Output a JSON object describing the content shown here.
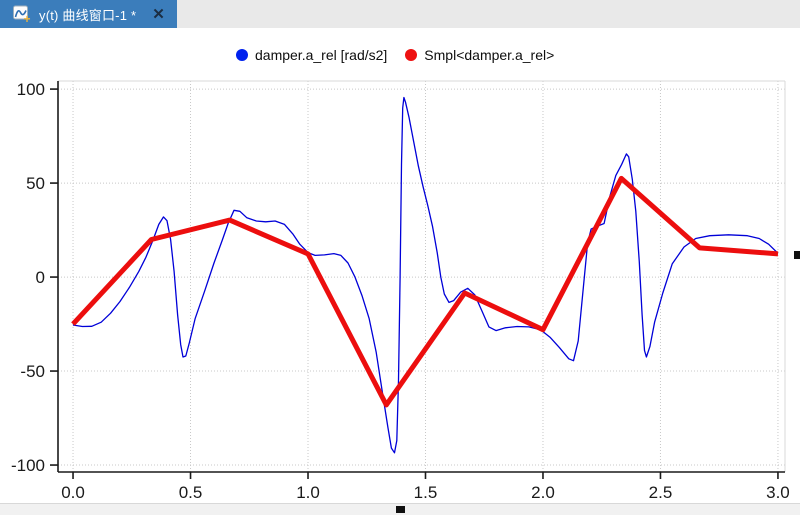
{
  "tab": {
    "title": "y(t) 曲线窗口-1 *",
    "close_glyph": "✕"
  },
  "colors": {
    "tab_active_bg": "#3b7dbb",
    "tab_bar_bg": "#e9e9e9",
    "series_blue": "#0000d8",
    "series_red": "#ec0e0e",
    "grid": "#c8c8c8",
    "axis": "#1a1a1a",
    "plot_border": "#d9d9d9"
  },
  "legend": {
    "entries": [
      {
        "label": "damper.a_rel [rad/s2]",
        "color": "#0022ee"
      },
      {
        "label": "Smpl<damper.a_rel>",
        "color": "#ee1111"
      }
    ]
  },
  "chart_data": {
    "type": "line",
    "title": "",
    "xlabel": "",
    "ylabel": "",
    "grid": "dotted",
    "legend_position": "top-center",
    "xlim": [
      -0.064,
      3.03
    ],
    "ylim": [
      -103.7,
      104.3
    ],
    "x_ticks": [
      0.0,
      0.5,
      1.0,
      1.5,
      2.0,
      2.5,
      3.0
    ],
    "x_tick_labels": [
      "0.0",
      "0.5",
      "1.0",
      "1.5",
      "2.0",
      "2.5",
      "3.0"
    ],
    "y_ticks": [
      100,
      50,
      0,
      -50,
      -100
    ],
    "y_tick_labels": [
      "100",
      "50",
      "0",
      "-50",
      "-100"
    ],
    "series": [
      {
        "name": "damper.a_rel [rad/s2]",
        "color": "#0000d8",
        "width": 1.3,
        "x": [
          0,
          0.04,
          0.08,
          0.12,
          0.16,
          0.2,
          0.24,
          0.28,
          0.31,
          0.34,
          0.365,
          0.385,
          0.4,
          0.415,
          0.43,
          0.445,
          0.458,
          0.468,
          0.48,
          0.495,
          0.52,
          0.56,
          0.6,
          0.635,
          0.66,
          0.685,
          0.71,
          0.74,
          0.78,
          0.82,
          0.86,
          0.9,
          0.935,
          0.965,
          1.0,
          1.03,
          1.07,
          1.11,
          1.14,
          1.17,
          1.2,
          1.23,
          1.26,
          1.29,
          1.315,
          1.34,
          1.355,
          1.368,
          1.378,
          1.385,
          1.392,
          1.398,
          1.403,
          1.408,
          1.415,
          1.43,
          1.45,
          1.47,
          1.49,
          1.51,
          1.53,
          1.55,
          1.565,
          1.58,
          1.6,
          1.62,
          1.65,
          1.68,
          1.71,
          1.74,
          1.77,
          1.8,
          1.84,
          1.89,
          1.94,
          1.99,
          2.03,
          2.07,
          2.11,
          2.13,
          2.15,
          2.17,
          2.19,
          2.205,
          2.23,
          2.26,
          2.285,
          2.31,
          2.335,
          2.355,
          2.365,
          2.38,
          2.395,
          2.41,
          2.422,
          2.432,
          2.44,
          2.455,
          2.475,
          2.51,
          2.55,
          2.6,
          2.65,
          2.71,
          2.79,
          2.87,
          2.92,
          2.96,
          3.0
        ],
        "y": [
          -25.5,
          -26.3,
          -26.2,
          -24.0,
          -19.2,
          -13.0,
          -5.5,
          3.0,
          10.5,
          19.5,
          28.0,
          32.0,
          30.0,
          20.0,
          3.0,
          -20.0,
          -36.0,
          -42.5,
          -42.0,
          -35.0,
          -22.0,
          -7.5,
          7.5,
          19.5,
          28.5,
          35.5,
          35.0,
          31.5,
          29.8,
          29.4,
          29.8,
          28.0,
          23.0,
          17.5,
          13.0,
          11.5,
          11.8,
          12.5,
          11.5,
          7.5,
          0.0,
          -10.0,
          -22.0,
          -40.0,
          -60.0,
          -80.0,
          -91.0,
          -93.5,
          -87.0,
          -55.0,
          0.0,
          60.0,
          90.0,
          95.5,
          93.0,
          85.0,
          72.0,
          59.0,
          48.0,
          38.0,
          27.0,
          13.0,
          0.0,
          -9.0,
          -13.5,
          -12.5,
          -8.0,
          -6.0,
          -9.5,
          -18.0,
          -26.5,
          -28.5,
          -27.0,
          -26.3,
          -26.5,
          -28.0,
          -32.0,
          -37.5,
          -43.5,
          -44.5,
          -34.0,
          -8.0,
          18.0,
          25.5,
          27.0,
          28.5,
          43.0,
          54.0,
          60.0,
          65.5,
          64.0,
          52.0,
          35.0,
          8.0,
          -20.0,
          -39.0,
          -42.5,
          -37.0,
          -24.0,
          -8.5,
          7.0,
          16.0,
          20.5,
          22.0,
          22.5,
          22.0,
          20.5,
          17.5,
          12.6
        ]
      },
      {
        "name": "Smpl<damper.a_rel>",
        "color": "#ec0e0e",
        "width": 5,
        "x": [
          0,
          0.3333,
          0.6667,
          1.0,
          1.3333,
          1.6667,
          2.0,
          2.3333,
          2.6667,
          3.0
        ],
        "y": [
          -25,
          20,
          30.3,
          12.3,
          -68,
          -8.5,
          -28,
          52.5,
          15.5,
          12.3
        ]
      }
    ]
  }
}
